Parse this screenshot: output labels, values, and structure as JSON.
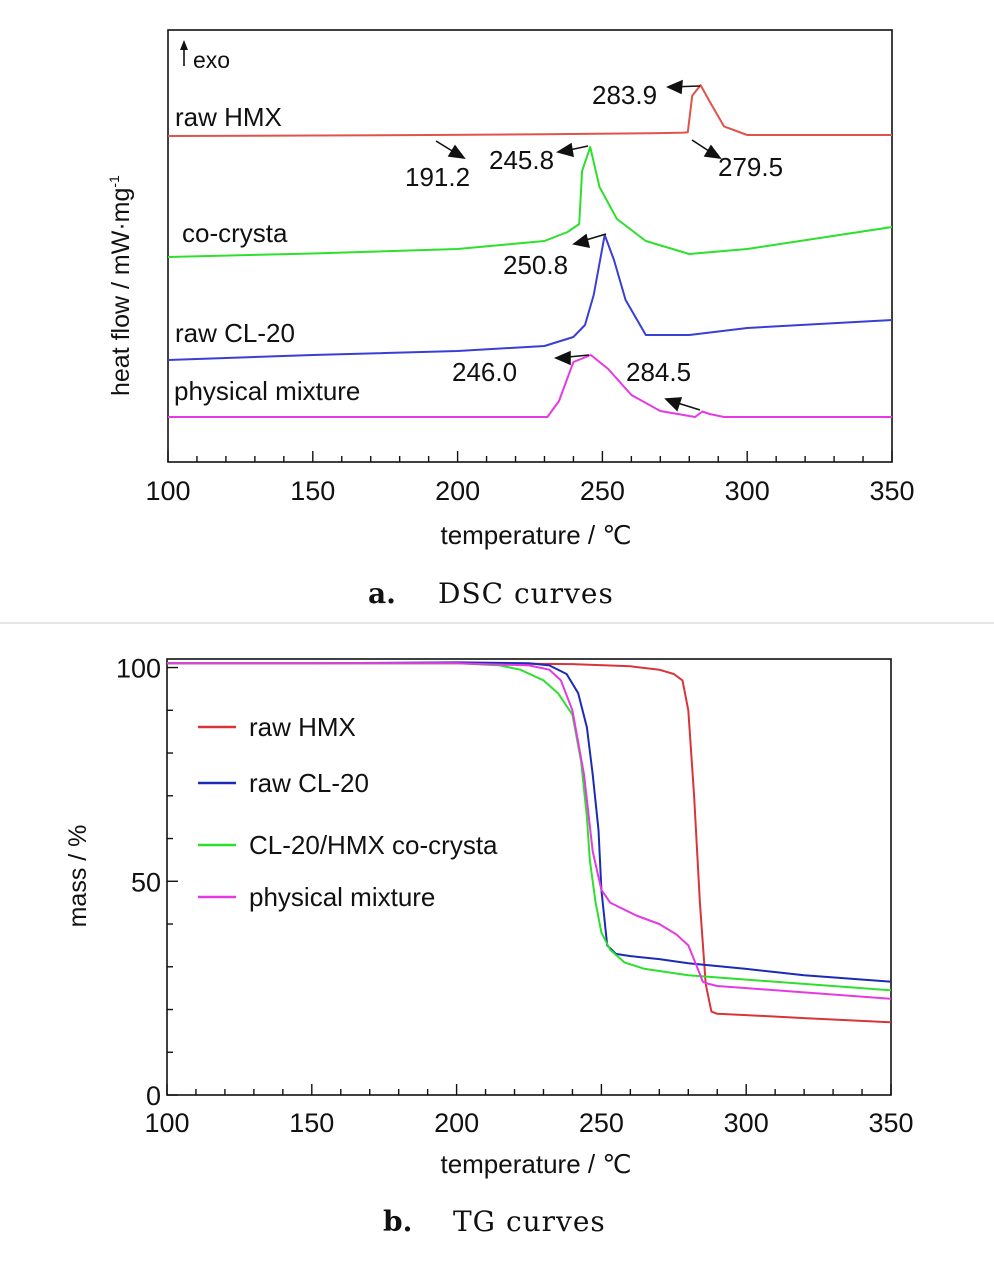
{
  "chart_data": [
    {
      "type": "line",
      "xlabel": "temperature / ℃",
      "ylabel": "heat flow / mW·mg",
      "ylabel_superscript": "-1",
      "xlim": [
        100,
        350
      ],
      "xticks": [
        "100",
        "150",
        "200",
        "250",
        "300",
        "350"
      ],
      "exo_label": "exo",
      "caption_letter": "a.",
      "caption_text": "DSC curves",
      "series": [
        {
          "name": "raw HMX",
          "color": "#e0534d",
          "x": [
            100,
            150,
            190,
            230,
            270,
            278,
            279.5,
            281,
            283.9,
            287,
            292,
            300,
            350
          ],
          "y": [
            0.0,
            0.05,
            0.1,
            0.18,
            0.3,
            0.35,
            0.4,
            4.2,
            5.3,
            3.6,
            1.0,
            0.1,
            0.1
          ],
          "annotations": [
            {
              "text": "283.9",
              "x": 283.9
            },
            {
              "text": "191.2",
              "x": 191.2
            },
            {
              "text": "279.5",
              "x": 279.5
            }
          ]
        },
        {
          "name": "co-crysta",
          "color": "#2ee02e",
          "x": [
            100,
            150,
            200,
            230,
            238,
            242,
            243,
            245.8,
            249,
            255,
            265,
            280,
            300,
            350
          ],
          "y": [
            0.0,
            0.35,
            0.8,
            1.6,
            2.5,
            3.3,
            8.6,
            11.0,
            7.0,
            3.8,
            1.6,
            0.3,
            0.8,
            3.0
          ],
          "annotations": [
            {
              "text": "245.8",
              "x": 245.8
            }
          ]
        },
        {
          "name": "raw CL-20",
          "color": "#3a3fd4",
          "x": [
            100,
            150,
            200,
            230,
            240,
            244,
            247,
            250.8,
            254,
            258,
            265,
            280,
            300,
            350
          ],
          "y": [
            0.0,
            0.5,
            0.9,
            1.4,
            2.3,
            3.5,
            6.5,
            12.5,
            10.0,
            6.0,
            2.5,
            2.5,
            3.2,
            4.0
          ],
          "annotations": [
            {
              "text": "250.8",
              "x": 250.8
            }
          ]
        },
        {
          "name": "physical mixture",
          "color": "#e53ae3",
          "x": [
            100,
            200,
            231,
            235,
            240,
            246.0,
            252,
            260,
            270,
            280,
            282,
            284.5,
            287,
            292,
            350
          ],
          "y": [
            0.0,
            0.0,
            0.0,
            1.6,
            5.5,
            6.2,
            4.8,
            2.2,
            0.6,
            0.1,
            0.0,
            0.55,
            0.3,
            0.0,
            0.0
          ],
          "annotations": [
            {
              "text": "246.0",
              "x": 246.0
            },
            {
              "text": "284.5",
              "x": 284.5
            }
          ]
        }
      ]
    },
    {
      "type": "line",
      "xlabel": "temperature / ℃",
      "ylabel": "mass / %",
      "xlim": [
        100,
        350
      ],
      "ylim": [
        0,
        102
      ],
      "xticks": [
        "100",
        "150",
        "200",
        "250",
        "300",
        "350"
      ],
      "yticks": [
        "0",
        "50",
        "100"
      ],
      "caption_letter": "b.",
      "caption_text": "TG curves",
      "legend_position": "upper-left",
      "series": [
        {
          "name": "raw HMX",
          "color": "#d8343a",
          "x": [
            100,
            150,
            200,
            240,
            260,
            270,
            275,
            278,
            280,
            282,
            284,
            286,
            288,
            290,
            300,
            320,
            350
          ],
          "y": [
            101,
            101,
            101,
            100.8,
            100.3,
            99.5,
            98.5,
            97.0,
            90,
            70,
            45,
            26,
            19.5,
            19,
            18.7,
            18.0,
            17.0
          ]
        },
        {
          "name": "raw CL-20",
          "color": "#1a2cb5",
          "x": [
            100,
            150,
            200,
            225,
            232,
            238,
            242,
            245,
            247,
            249,
            250,
            252,
            255,
            260,
            270,
            280,
            300,
            320,
            350
          ],
          "y": [
            101,
            101,
            101.2,
            101,
            100.5,
            98.5,
            94,
            86,
            75,
            62,
            48,
            35,
            33,
            32.5,
            31.8,
            30.8,
            29.5,
            28,
            26.5
          ]
        },
        {
          "name": "CL-20/HMX co-crysta",
          "color": "#2ee02e",
          "x": [
            100,
            150,
            200,
            215,
            222,
            230,
            235,
            240,
            243,
            245,
            246,
            248,
            250,
            253,
            258,
            265,
            280,
            300,
            350
          ],
          "y": [
            101,
            101,
            101,
            100.5,
            99.5,
            97,
            94,
            89,
            78,
            65,
            55,
            45,
            38,
            34,
            31,
            29.5,
            28,
            27,
            24.5
          ]
        },
        {
          "name": "physical mixture",
          "color": "#e53ae3",
          "x": [
            100,
            150,
            200,
            225,
            232,
            236,
            240,
            244,
            247,
            250,
            253,
            262,
            270,
            276,
            280,
            283,
            285,
            287,
            290,
            300,
            350
          ],
          "y": [
            101,
            101,
            101,
            100.5,
            99.5,
            97,
            90,
            75,
            57,
            48,
            45,
            42,
            40,
            37.5,
            35,
            30,
            26.5,
            26,
            25.5,
            25,
            22.5
          ]
        }
      ]
    }
  ]
}
